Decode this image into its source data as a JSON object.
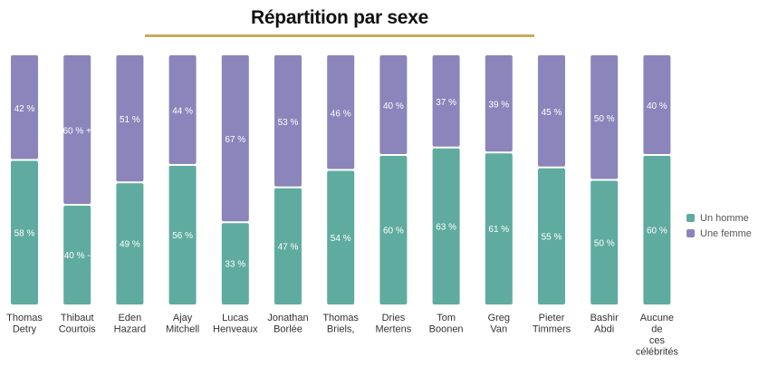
{
  "chart_data": {
    "type": "bar",
    "stacked": true,
    "normalized_percent": true,
    "title": "Répartition par sexe",
    "categories": [
      "Thomas\nDetry",
      "Thibaut\nCourtois",
      "Eden\nHazard",
      "Ajay\nMitchell",
      "Lucas\nHenveaux",
      "Jonathan\nBorlée",
      "Thomas\nBriels,",
      "Dries\nMertens",
      "Tom\nBoonen",
      "Greg\nVan",
      "Pieter\nTimmers",
      "Bashir\nAbdi",
      "Aucune\nde\nces\ncélébrités"
    ],
    "series": [
      {
        "name": "Un homme",
        "color": "#5fab9f",
        "values": [
          58,
          40,
          49,
          56,
          33,
          47,
          54,
          60,
          63,
          61,
          55,
          50,
          60
        ],
        "labels": [
          "58 %",
          "40 % -",
          "49 %",
          "56 %",
          "33 %",
          "47 %",
          "54 %",
          "60 %",
          "63 %",
          "61 %",
          "55 %",
          "50 %",
          "60 %"
        ]
      },
      {
        "name": "Une femme",
        "color": "#8b85bb",
        "values": [
          42,
          60,
          51,
          44,
          67,
          53,
          46,
          40,
          37,
          39,
          45,
          50,
          40
        ],
        "labels": [
          "42 %",
          "60 % +",
          "51 %",
          "44 %",
          "67 %",
          "53 %",
          "46 %",
          "40 %",
          "37 %",
          "39 %",
          "45 %",
          "50 %",
          "40 %"
        ]
      }
    ],
    "ylim": [
      0,
      100
    ],
    "grid": false,
    "legend_position": "right"
  }
}
